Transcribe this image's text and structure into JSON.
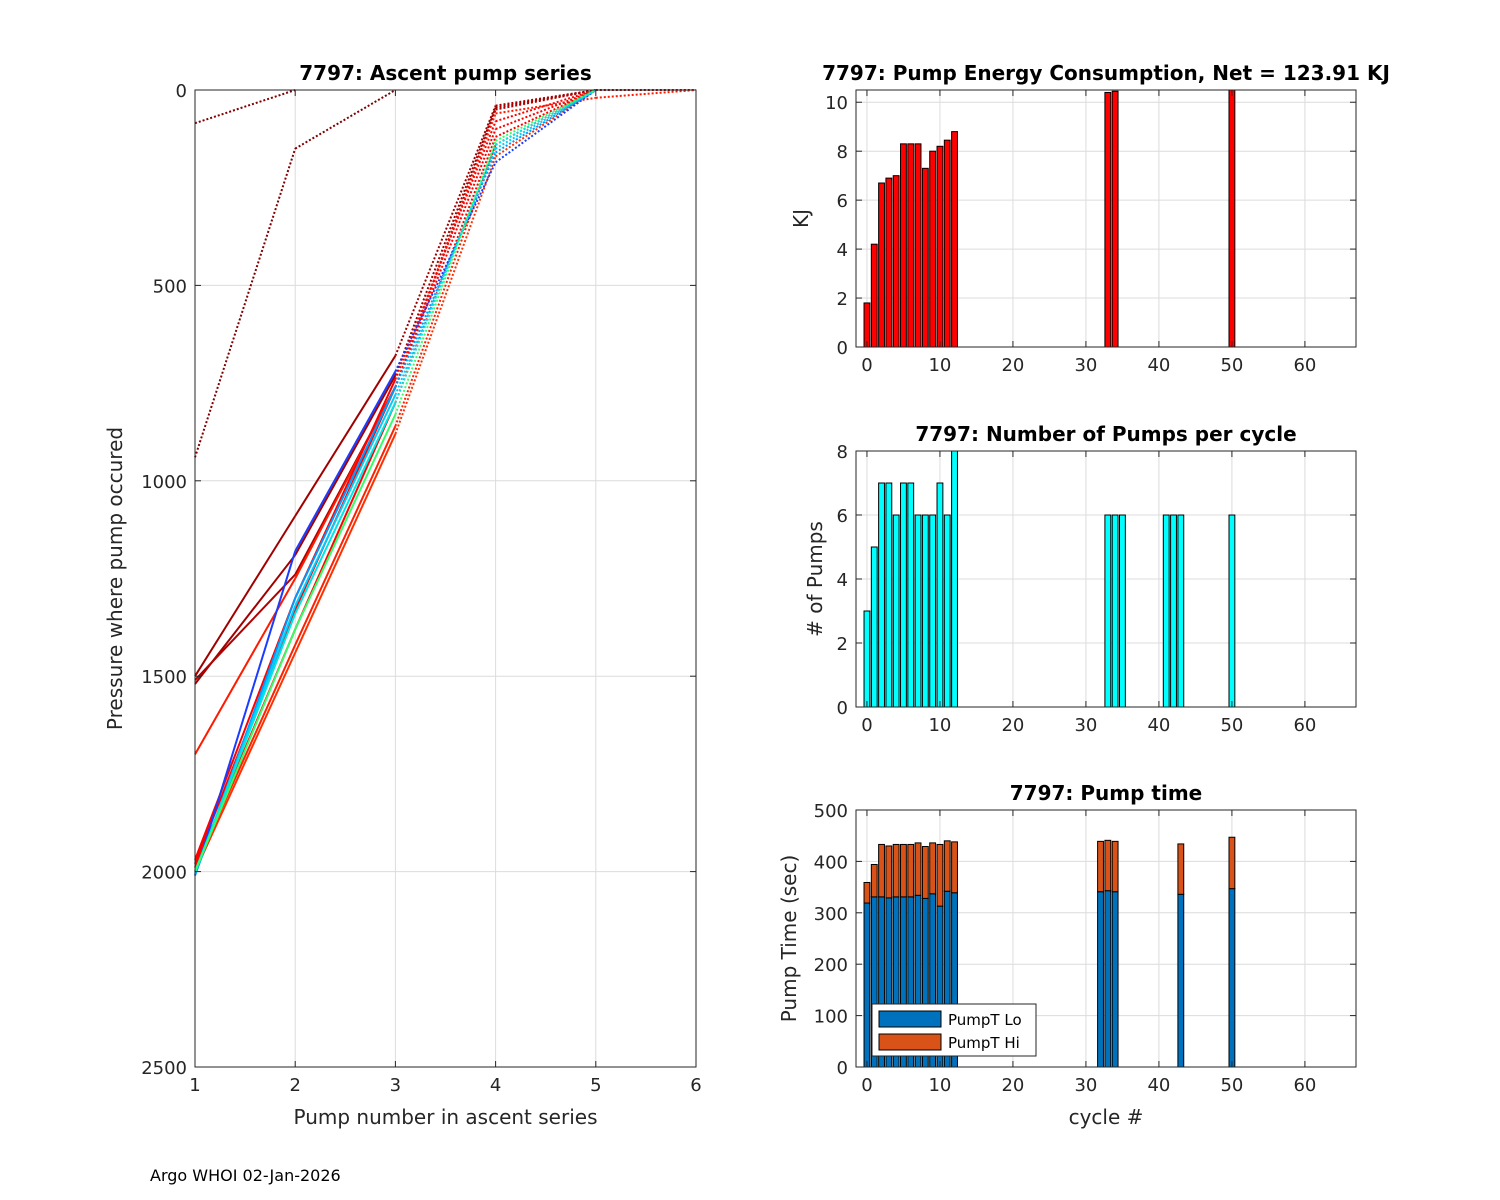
{
  "footer": "Argo WHOI 02-Jan-2026",
  "chart_data": [
    {
      "id": "ascent",
      "type": "line",
      "title": "7797: Ascent pump series",
      "xlabel": "Pump number in ascent series",
      "ylabel": "Pressure where pump occured",
      "xlim": [
        1,
        6
      ],
      "ylim": [
        0,
        2500
      ],
      "y_reversed": true,
      "grid": true,
      "xticks": [
        1,
        2,
        3,
        4,
        5,
        6
      ],
      "yticks": [
        0,
        500,
        1000,
        1500,
        2000,
        2500
      ],
      "note": "Approximate series read from figure; solid segments deep, dotted segments shallow",
      "series": [
        {
          "color": "#800000",
          "x": [
            1,
            2
          ],
          "y": [
            85,
            0
          ]
        },
        {
          "color": "#800000",
          "x": [
            1,
            2,
            3
          ],
          "y": [
            940,
            150,
            0
          ]
        },
        {
          "color": "#a00000",
          "x": [
            1,
            2,
            3,
            4,
            5,
            6
          ],
          "y": [
            1500,
            1090,
            680,
            40,
            0,
            0
          ]
        },
        {
          "color": "#a00000",
          "x": [
            1,
            2,
            3,
            4,
            5
          ],
          "y": [
            1520,
            1190,
            730,
            45,
            0
          ]
        },
        {
          "color": "#b00000",
          "x": [
            1,
            2,
            3,
            4,
            5
          ],
          "y": [
            1510,
            1240,
            760,
            50,
            0
          ]
        },
        {
          "color": "#ff1a00",
          "x": [
            1,
            2,
            3,
            4,
            5,
            6
          ],
          "y": [
            1700,
            1250,
            760,
            60,
            20,
            0
          ]
        },
        {
          "color": "#ff0000",
          "x": [
            1,
            2,
            3,
            4,
            5
          ],
          "y": [
            1970,
            1300,
            740,
            80,
            0
          ]
        },
        {
          "color": "#ff0000",
          "x": [
            1,
            2,
            3,
            4,
            5
          ],
          "y": [
            1980,
            1330,
            760,
            100,
            0
          ]
        },
        {
          "color": "#ff2000",
          "x": [
            1,
            2,
            3,
            4,
            5
          ],
          "y": [
            1990,
            1420,
            860,
            140,
            0
          ]
        },
        {
          "color": "#ff3000",
          "x": [
            1,
            2,
            3,
            4,
            5
          ],
          "y": [
            2000,
            1440,
            880,
            170,
            0
          ]
        },
        {
          "color": "#ff0000",
          "x": [
            1,
            2,
            3,
            4,
            5
          ],
          "y": [
            1990,
            1380,
            800,
            120,
            0
          ]
        },
        {
          "color": "#1a3cff",
          "x": [
            1,
            2,
            3,
            4,
            5
          ],
          "y": [
            2010,
            1180,
            720,
            185,
            0
          ]
        },
        {
          "color": "#0099ff",
          "x": [
            1,
            2,
            3,
            4,
            5
          ],
          "y": [
            2010,
            1300,
            760,
            160,
            0
          ]
        },
        {
          "color": "#00ccff",
          "x": [
            1,
            2,
            3,
            4,
            5
          ],
          "y": [
            2005,
            1320,
            780,
            150,
            0
          ]
        },
        {
          "color": "#00e5e5",
          "x": [
            1,
            2,
            3,
            4,
            5
          ],
          "y": [
            2000,
            1340,
            800,
            140,
            0
          ]
        },
        {
          "color": "#33ff66",
          "x": [
            1,
            2,
            3,
            4,
            5
          ],
          "y": [
            2000,
            1380,
            830,
            130,
            0
          ]
        }
      ]
    },
    {
      "id": "energy",
      "type": "bar",
      "title": "7797: Pump Energy Consumption,  Net = 123.91 KJ",
      "xlabel": "",
      "ylabel": "KJ",
      "xlim": [
        -1.5,
        67
      ],
      "ylim": [
        0,
        10.5
      ],
      "grid": true,
      "xticks": [
        0,
        10,
        20,
        30,
        40,
        50,
        60
      ],
      "yticks": [
        0,
        2,
        4,
        6,
        8,
        10
      ],
      "color": "#ff0000",
      "x": [
        0,
        1,
        2,
        3,
        4,
        5,
        6,
        7,
        8,
        9,
        10,
        11,
        12,
        33,
        34,
        50
      ],
      "values": [
        1.8,
        4.2,
        6.7,
        6.9,
        7.0,
        8.3,
        8.3,
        8.3,
        7.3,
        8.0,
        8.2,
        8.45,
        8.8,
        10.4,
        10.45,
        10.5
      ]
    },
    {
      "id": "npumps",
      "type": "bar",
      "title": "7797: Number of Pumps per cycle",
      "xlabel": "",
      "ylabel": "# of Pumps",
      "xlim": [
        -1.5,
        67
      ],
      "ylim": [
        0,
        8
      ],
      "grid": true,
      "xticks": [
        0,
        10,
        20,
        30,
        40,
        50,
        60
      ],
      "yticks": [
        0,
        2,
        4,
        6,
        8
      ],
      "color": "#00ffff",
      "x": [
        0,
        1,
        2,
        3,
        4,
        5,
        6,
        7,
        8,
        9,
        10,
        11,
        12,
        33,
        34,
        35,
        41,
        42,
        43,
        50
      ],
      "values": [
        3,
        5,
        7,
        7,
        6,
        7,
        7,
        6,
        6,
        6,
        7,
        6,
        8,
        6,
        6,
        6,
        6,
        6,
        6,
        6
      ]
    },
    {
      "id": "pumptime",
      "type": "bar",
      "stacked": true,
      "title": "7797: Pump time",
      "xlabel": "cycle #",
      "ylabel": "Pump Time (sec)",
      "xlim": [
        -1.5,
        67
      ],
      "ylim": [
        0,
        500
      ],
      "grid": true,
      "legend_position": "bottom-left",
      "xticks": [
        0,
        10,
        20,
        30,
        40,
        50,
        60
      ],
      "yticks": [
        0,
        100,
        200,
        300,
        400,
        500
      ],
      "x": [
        0,
        1,
        2,
        3,
        4,
        5,
        6,
        7,
        8,
        9,
        10,
        11,
        12,
        32,
        33,
        34,
        43,
        50
      ],
      "series": [
        {
          "name": "PumpT Lo",
          "color": "#0072bd",
          "values": [
            319,
            331,
            331,
            329,
            331,
            331,
            331,
            334,
            328,
            337,
            313,
            342,
            339,
            341,
            343,
            341,
            336,
            347
          ]
        },
        {
          "name": "PumpT Hi",
          "color": "#d95319",
          "values": [
            40,
            63,
            102,
            101,
            102,
            102,
            102,
            102,
            101,
            99,
            120,
            98,
            99,
            98,
            98,
            98,
            98,
            100
          ]
        }
      ]
    }
  ]
}
